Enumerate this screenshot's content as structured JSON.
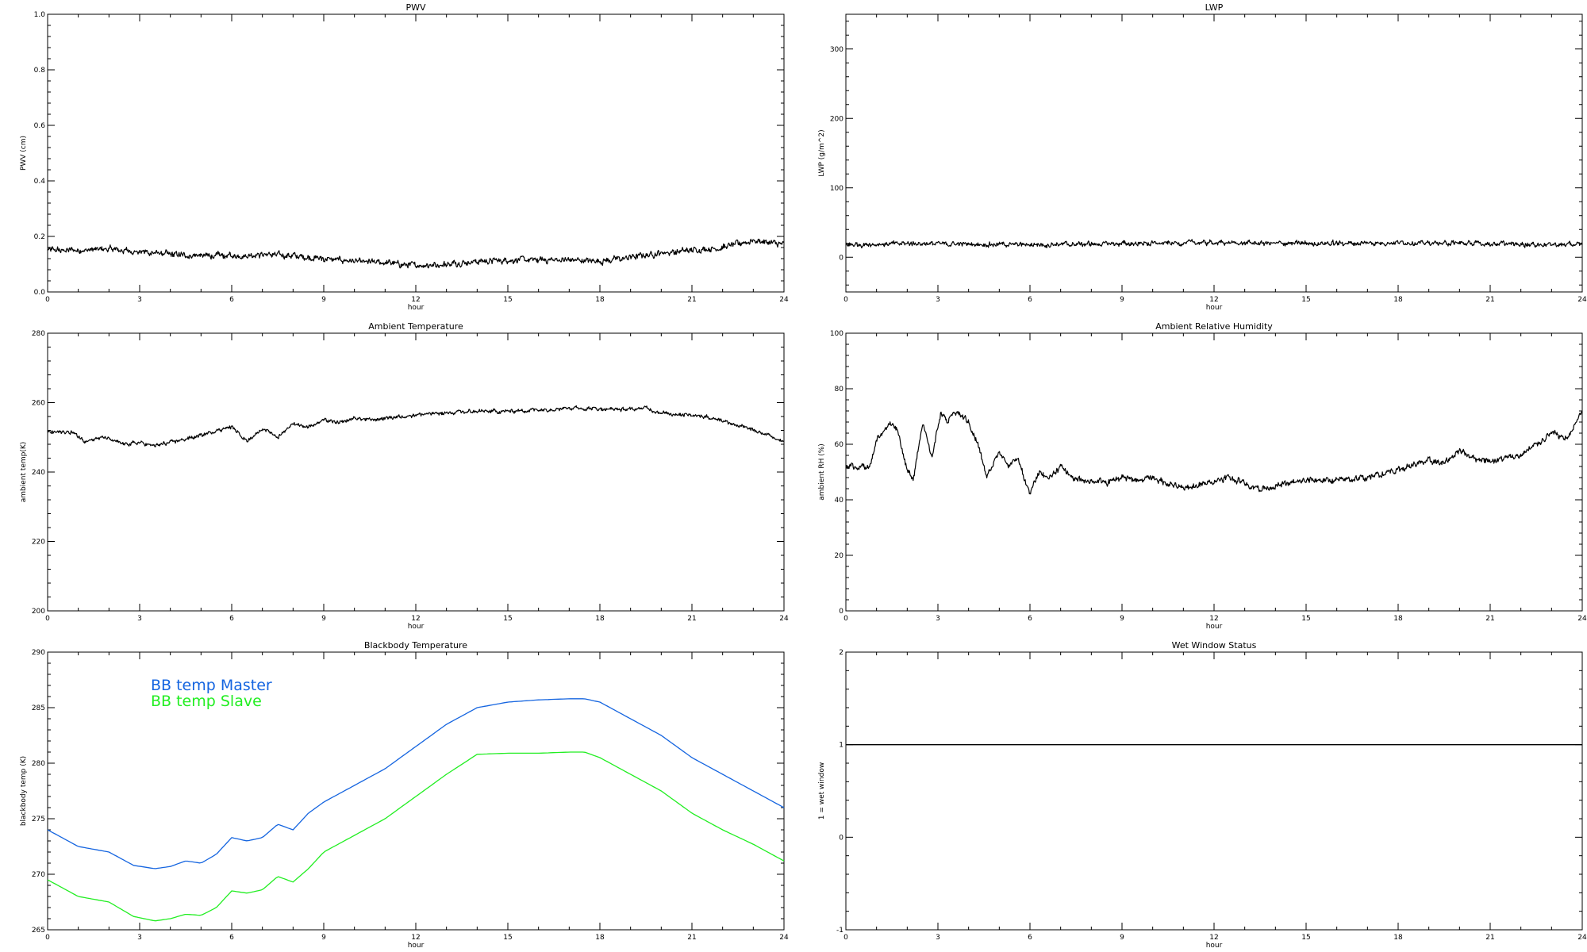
{
  "chart_data": [
    {
      "id": "pwv",
      "type": "line",
      "title": "PWV",
      "xlabel": "hour",
      "ylabel": "PWV (cm)",
      "xlim": [
        0,
        24
      ],
      "ylim": [
        0.0,
        1.0
      ],
      "xticks": [
        "0",
        "3",
        "6",
        "9",
        "12",
        "15",
        "18",
        "21",
        "24"
      ],
      "yticks": [
        "0.0",
        "0.2",
        "0.4",
        "0.6",
        "0.8",
        "1.0"
      ],
      "series": [
        {
          "color": "#000000",
          "noise": 0.008,
          "x": [
            0,
            1,
            2,
            3,
            4,
            5,
            6,
            7,
            8,
            9,
            10,
            11,
            12,
            13,
            14,
            15,
            16,
            17,
            18,
            19,
            20,
            21,
            22,
            23,
            24
          ],
          "y": [
            0.15,
            0.15,
            0.155,
            0.145,
            0.135,
            0.13,
            0.13,
            0.135,
            0.13,
            0.12,
            0.11,
            0.105,
            0.095,
            0.1,
            0.11,
            0.115,
            0.115,
            0.115,
            0.11,
            0.125,
            0.14,
            0.15,
            0.16,
            0.185,
            0.17
          ]
        }
      ]
    },
    {
      "id": "lwp",
      "type": "line",
      "title": "LWP",
      "xlabel": "hour",
      "ylabel": "LWP (g/m^2)",
      "xlim": [
        0,
        24
      ],
      "ylim": [
        -50,
        350
      ],
      "xticks": [
        "0",
        "3",
        "6",
        "9",
        "12",
        "15",
        "18",
        "21",
        "24"
      ],
      "yticks": [
        "0",
        "100",
        "200",
        "300"
      ],
      "series": [
        {
          "color": "#000000",
          "noise": 2.5,
          "x": [
            0,
            2,
            4,
            6,
            8,
            10,
            12,
            14,
            16,
            18,
            20,
            22,
            24
          ],
          "y": [
            18,
            20,
            19,
            18,
            19,
            20,
            21,
            20,
            20,
            21,
            20,
            19,
            18
          ]
        }
      ]
    },
    {
      "id": "ambient-temp",
      "type": "line",
      "title": "Ambient Temperature",
      "xlabel": "hour",
      "ylabel": "ambient temp(K)",
      "xlim": [
        0,
        24
      ],
      "ylim": [
        200,
        280
      ],
      "xticks": [
        "0",
        "3",
        "6",
        "9",
        "12",
        "15",
        "18",
        "21",
        "24"
      ],
      "yticks": [
        "200",
        "220",
        "240",
        "260",
        "280"
      ],
      "series": [
        {
          "color": "#000000",
          "noise": 0.4,
          "x": [
            0,
            0.8,
            1.2,
            1.8,
            2.5,
            3.0,
            3.5,
            4.0,
            4.5,
            5.0,
            5.5,
            6.0,
            6.5,
            7.0,
            7.5,
            8.0,
            8.5,
            9.0,
            9.5,
            10.0,
            10.5,
            11.0,
            12.0,
            13.0,
            14.0,
            15.0,
            16.0,
            17.0,
            18.0,
            19.0,
            19.5,
            20.0,
            21.0,
            22.0,
            23.0,
            24.0
          ],
          "y": [
            251.5,
            251.5,
            249.0,
            250.0,
            248.0,
            248.5,
            247.5,
            248.5,
            249.5,
            250.5,
            252.0,
            253.0,
            249.0,
            252.5,
            250.0,
            254.0,
            253.0,
            255.0,
            254.0,
            255.5,
            255.0,
            255.5,
            256.5,
            257.0,
            257.5,
            257.5,
            258.0,
            258.5,
            258.2,
            258.0,
            258.5,
            257.0,
            256.5,
            255.0,
            252.0,
            249.0
          ]
        }
      ]
    },
    {
      "id": "ambient-rh",
      "type": "line",
      "title": "Ambient Relative Humidity",
      "xlabel": "hour",
      "ylabel": "ambient RH (%)",
      "xlim": [
        0,
        24
      ],
      "ylim": [
        0,
        100
      ],
      "xticks": [
        "0",
        "3",
        "6",
        "9",
        "12",
        "15",
        "18",
        "21",
        "24"
      ],
      "yticks": [
        "0",
        "20",
        "40",
        "60",
        "80",
        "100"
      ],
      "series": [
        {
          "color": "#000000",
          "noise": 0.8,
          "x": [
            0,
            0.8,
            1.0,
            1.5,
            1.7,
            2.0,
            2.2,
            2.5,
            2.8,
            3.1,
            3.3,
            3.6,
            4.0,
            4.3,
            4.6,
            5.0,
            5.3,
            5.6,
            6.0,
            6.3,
            6.6,
            7.0,
            7.5,
            8.0,
            8.5,
            9.0,
            9.5,
            10.0,
            10.5,
            11.0,
            11.5,
            12.0,
            12.5,
            13.0,
            13.5,
            14.0,
            15.0,
            16.0,
            17.0,
            18.0,
            19.0,
            19.5,
            20.0,
            20.5,
            21.0,
            22.0,
            23.0,
            23.5,
            24.0
          ],
          "y": [
            52,
            52,
            62,
            68,
            65,
            50,
            48,
            68,
            55,
            72,
            68,
            72,
            68,
            60,
            48,
            58,
            52,
            55,
            42,
            50,
            48,
            52,
            47,
            47,
            46,
            48,
            47,
            48,
            46,
            44,
            45,
            47,
            48,
            46,
            44,
            45,
            47,
            47,
            48,
            51,
            54,
            53,
            58,
            55,
            54,
            56,
            64,
            62,
            72
          ]
        }
      ]
    },
    {
      "id": "blackbody-temp",
      "type": "line",
      "title": "Blackbody Temperature",
      "xlabel": "hour",
      "ylabel": "blackbody temp (K)",
      "xlim": [
        0,
        24
      ],
      "ylim": [
        265,
        290
      ],
      "xticks": [
        "0",
        "3",
        "6",
        "9",
        "12",
        "15",
        "18",
        "21",
        "24"
      ],
      "yticks": [
        "265",
        "270",
        "275",
        "280",
        "285",
        "290"
      ],
      "legend_position": "top-left",
      "series": [
        {
          "name": "BB temp Master",
          "color": "#1565e0",
          "noise": 0,
          "x": [
            0,
            1,
            2,
            2.8,
            3.5,
            4.0,
            4.5,
            5.0,
            5.5,
            6.0,
            6.5,
            7.0,
            7.5,
            8.0,
            8.5,
            9.0,
            10.0,
            11.0,
            12.0,
            13.0,
            14.0,
            15.0,
            16.0,
            17.0,
            17.5,
            18.0,
            19.0,
            20.0,
            21.0,
            22.0,
            23.0,
            24.0
          ],
          "y": [
            274.0,
            272.5,
            272.0,
            270.8,
            270.5,
            270.7,
            271.2,
            271.0,
            271.8,
            273.3,
            273.0,
            273.3,
            274.5,
            274.0,
            275.5,
            276.5,
            278.0,
            279.5,
            281.5,
            283.5,
            285.0,
            285.5,
            285.7,
            285.8,
            285.8,
            285.5,
            284.0,
            282.5,
            280.5,
            279.0,
            277.5,
            276.0
          ]
        },
        {
          "name": "BB temp Slave",
          "color": "#22ee22",
          "noise": 0,
          "x": [
            0,
            1,
            2,
            2.8,
            3.5,
            4.0,
            4.5,
            5.0,
            5.5,
            6.0,
            6.5,
            7.0,
            7.5,
            8.0,
            8.5,
            9.0,
            10.0,
            11.0,
            12.0,
            13.0,
            14.0,
            15.0,
            16.0,
            17.0,
            17.5,
            18.0,
            19.0,
            20.0,
            21.0,
            22.0,
            23.0,
            24.0
          ],
          "y": [
            269.5,
            268.0,
            267.5,
            266.2,
            265.8,
            266.0,
            266.4,
            266.3,
            267.0,
            268.5,
            268.3,
            268.6,
            269.8,
            269.3,
            270.5,
            272.0,
            273.5,
            275.0,
            277.0,
            279.0,
            280.8,
            280.9,
            280.9,
            281.0,
            281.0,
            280.5,
            279.0,
            277.5,
            275.5,
            274.0,
            272.7,
            271.2
          ]
        }
      ]
    },
    {
      "id": "wet-window",
      "type": "line",
      "title": "Wet Window Status",
      "xlabel": "hour",
      "ylabel": "1 = wet window",
      "xlim": [
        0,
        24
      ],
      "ylim": [
        -1,
        2
      ],
      "xticks": [
        "0",
        "3",
        "6",
        "9",
        "12",
        "15",
        "18",
        "21",
        "24"
      ],
      "yticks": [
        "-1",
        "0",
        "1",
        "2"
      ],
      "series": [
        {
          "color": "#000000",
          "noise": 0,
          "x": [
            0,
            24
          ],
          "y": [
            1,
            1
          ]
        }
      ]
    }
  ]
}
